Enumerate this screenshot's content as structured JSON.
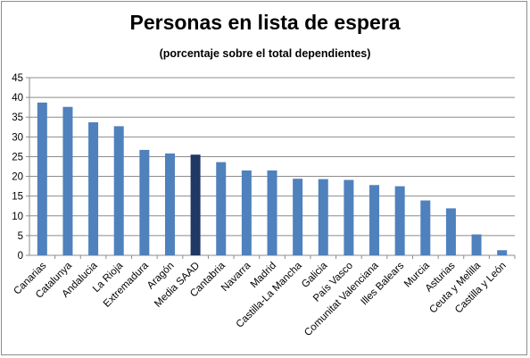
{
  "chart_data": {
    "type": "bar",
    "title": "Personas en lista de espera",
    "subtitle": "(porcentaje sobre el total dependientes)",
    "xlabel": "",
    "ylabel": "",
    "ylim": [
      0,
      45
    ],
    "yticks": [
      0,
      5,
      10,
      15,
      20,
      25,
      30,
      35,
      40,
      45
    ],
    "grid": true,
    "categories": [
      "Canarias",
      "Catalunya",
      "Andalucia",
      "La Rioja",
      "Extremadura",
      "Aragón",
      "Media SAAD",
      "Cantabria",
      "Navarra",
      "Madrid",
      "Castilla-La Mancha",
      "Galicia",
      "País Vasco",
      "Comunitat Valenciana",
      "Illes Balears",
      "Murcia",
      "Asturias",
      "Ceuta y Melilla",
      "Castilla y León"
    ],
    "values": [
      38.7,
      37.6,
      33.7,
      32.7,
      26.7,
      25.8,
      25.5,
      23.6,
      21.5,
      21.5,
      19.4,
      19.3,
      19.1,
      17.8,
      17.5,
      13.9,
      11.9,
      5.3,
      1.3
    ],
    "colors": {
      "bar": "#4f81bd",
      "highlight": "#1f3864",
      "grid": "#8c8c8c",
      "axis": "#8c8c8c"
    },
    "highlight_category": "Media SAAD"
  }
}
